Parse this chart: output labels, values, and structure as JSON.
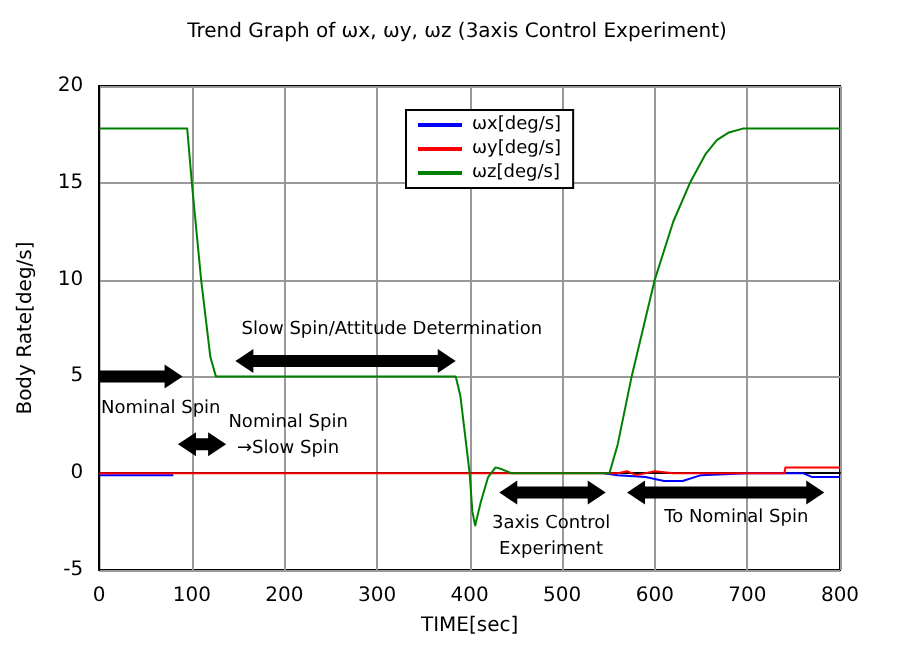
{
  "chart_data": {
    "type": "line",
    "title": "Trend Graph of ωx, ωy, ωz (3axis Control Experiment)",
    "xlabel": "TIME[sec]",
    "ylabel": "Body Rate[deg/s]",
    "xlim": [
      0,
      800
    ],
    "xticks": [
      0,
      100,
      200,
      300,
      400,
      500,
      600,
      700,
      800
    ],
    "ylim": [
      -5,
      20
    ],
    "yticks": [
      -5,
      0,
      5,
      10,
      15,
      20
    ],
    "grid": true,
    "legend": "top",
    "marker": "none",
    "line_style": "solid",
    "series": [
      {
        "name": "ωx[deg/s]",
        "color": "#0000ff",
        "x": [
          0,
          80,
          85,
          540,
          545,
          560,
          590,
          610,
          630,
          650,
          700,
          760,
          770,
          800
        ],
        "values": [
          -0.1,
          -0.1,
          null,
          null,
          0,
          -0.1,
          -0.2,
          -0.4,
          -0.4,
          -0.1,
          0,
          0,
          -0.2,
          -0.2
        ]
      },
      {
        "name": "ωy[deg/s]",
        "color": "#ff0000",
        "x": [
          0,
          560,
          570,
          580,
          600,
          620,
          740,
          741,
          800
        ],
        "values": [
          0,
          0,
          0.1,
          -0.1,
          0.1,
          0,
          0,
          0.3,
          0.3
        ]
      },
      {
        "name": "ωz[deg/s]",
        "color": "#008000",
        "x": [
          0,
          95,
          100,
          110,
          120,
          126,
          200,
          300,
          385,
          390,
          395,
          400,
          403,
          406,
          412,
          420,
          428,
          435,
          445,
          551,
          560,
          575,
          590,
          600,
          620,
          638,
          655,
          667,
          680,
          695,
          800
        ],
        "values": [
          17.8,
          17.8,
          15,
          10,
          6,
          5,
          5,
          5,
          5,
          4,
          2,
          0,
          -2,
          -2.7,
          -1.5,
          -0.2,
          0.3,
          0.2,
          0,
          0,
          1.5,
          5,
          8,
          10,
          13,
          15,
          16.5,
          17.2,
          17.6,
          17.8,
          17.8
        ]
      }
    ],
    "annotations": [
      "Nominal Spin",
      "Nominal Spin\n→Slow Spin",
      "Slow Spin/Attitude Determination",
      "3axis Control\nExperiment",
      "To Nominal Spin"
    ]
  }
}
